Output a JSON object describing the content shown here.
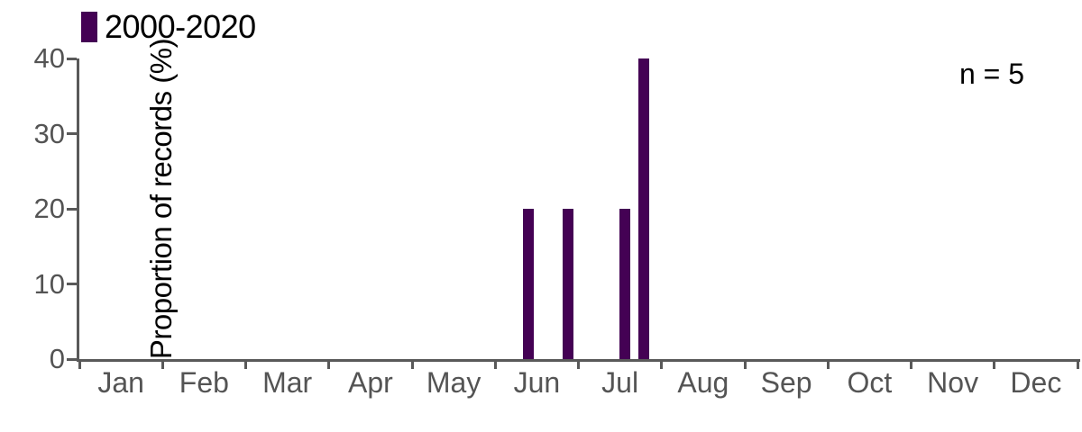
{
  "legend": {
    "label": "2000-2020",
    "swatch_color": "#440154"
  },
  "annotation": {
    "label": "n = 5"
  },
  "chart_data": {
    "type": "bar",
    "title": "",
    "xlabel": "",
    "ylabel": "Proportion of records (%)",
    "ylim": [
      0,
      40
    ],
    "y_ticks": [
      0,
      10,
      20,
      30,
      40
    ],
    "x_tick_labels": [
      "Jan",
      "Feb",
      "Mar",
      "Apr",
      "May",
      "Jun",
      "Jul",
      "Aug",
      "Sep",
      "Oct",
      "Nov",
      "Dec"
    ],
    "grid": false,
    "legend_position": "top-left",
    "sample_size": 5,
    "series": [
      {
        "name": "2000-2020",
        "color": "#440154",
        "bars": [
          {
            "month": "Jun",
            "month_index": 5,
            "position_in_month": 0.4,
            "value": 20
          },
          {
            "month": "Jun",
            "month_index": 5,
            "position_in_month": 0.87,
            "value": 20
          },
          {
            "month": "Jul",
            "month_index": 6,
            "position_in_month": 0.56,
            "value": 20
          },
          {
            "month": "Jul",
            "month_index": 6,
            "position_in_month": 0.79,
            "value": 40
          }
        ]
      }
    ]
  },
  "colors": {
    "bar": "#440154",
    "axis": "#595959",
    "tick_label": "#545454",
    "text": "#000000"
  }
}
